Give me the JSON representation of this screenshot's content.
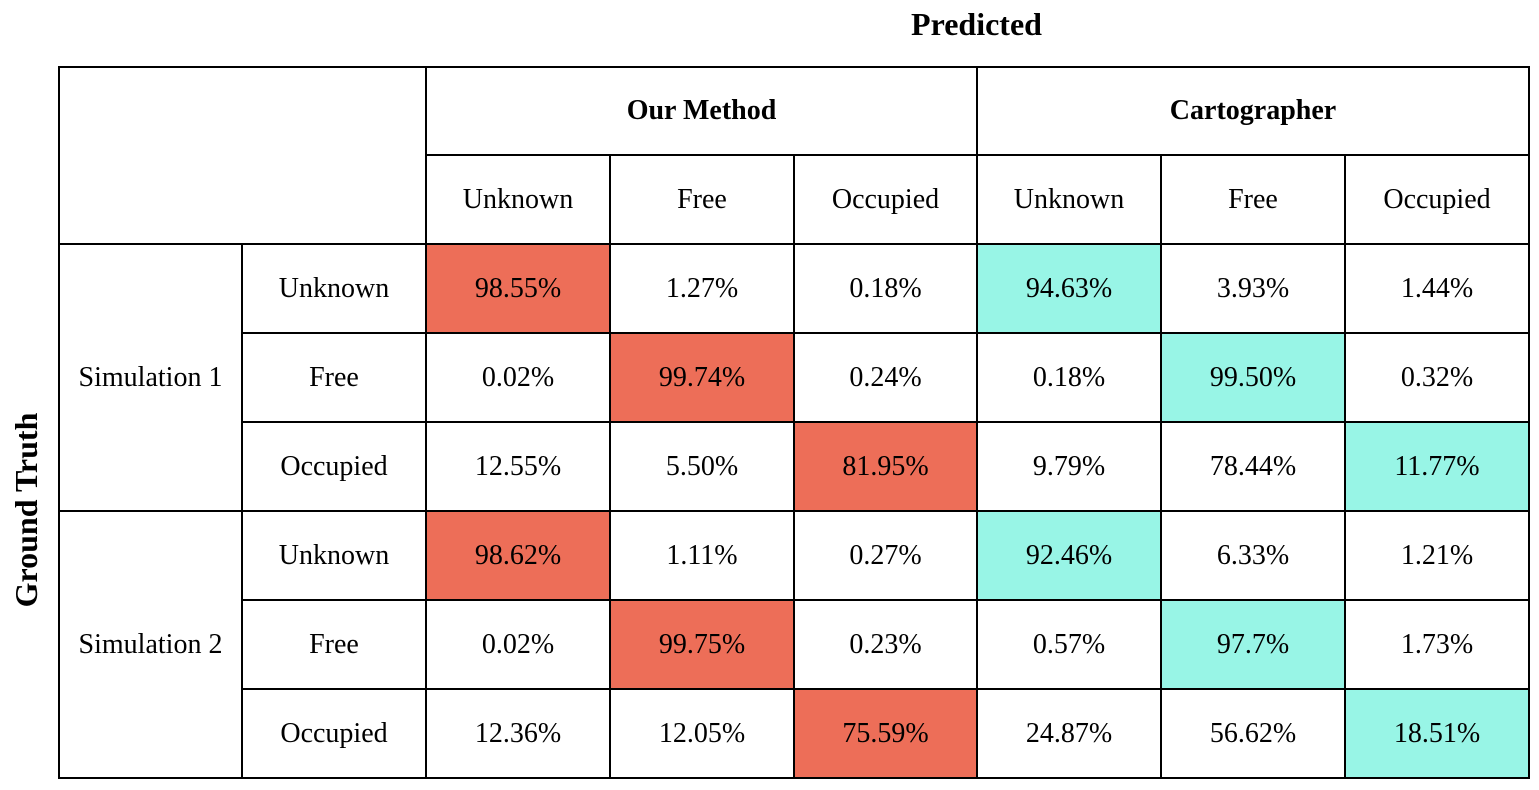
{
  "title_top": "Predicted",
  "title_side": "Ground Truth",
  "colors": {
    "our_method_diagonal": "#ed6e58",
    "cartographer_diagonal": "#98f5e6"
  },
  "methods": [
    "Our Method",
    "Cartographer"
  ],
  "classes": [
    "Unknown",
    "Free",
    "Occupied"
  ],
  "groups": [
    {
      "name": "Simulation 1",
      "rows": [
        {
          "label": "Unknown",
          "values": [
            "98.55%",
            "1.27%",
            "0.18%",
            "94.63%",
            "3.93%",
            "1.44%"
          ]
        },
        {
          "label": "Free",
          "values": [
            "0.02%",
            "99.74%",
            "0.24%",
            "0.18%",
            "99.50%",
            "0.32%"
          ]
        },
        {
          "label": "Occupied",
          "values": [
            "12.55%",
            "5.50%",
            "81.95%",
            "9.79%",
            "78.44%",
            "11.77%"
          ]
        }
      ]
    },
    {
      "name": "Simulation 2",
      "rows": [
        {
          "label": "Unknown",
          "values": [
            "98.62%",
            "1.11%",
            "0.27%",
            "92.46%",
            "6.33%",
            "1.21%"
          ]
        },
        {
          "label": "Free",
          "values": [
            "0.02%",
            "99.75%",
            "0.23%",
            "0.57%",
            "97.7%",
            "1.73%"
          ]
        },
        {
          "label": "Occupied",
          "values": [
            "12.36%",
            "12.05%",
            "75.59%",
            "24.87%",
            "56.62%",
            "18.51%"
          ]
        }
      ]
    }
  ]
}
